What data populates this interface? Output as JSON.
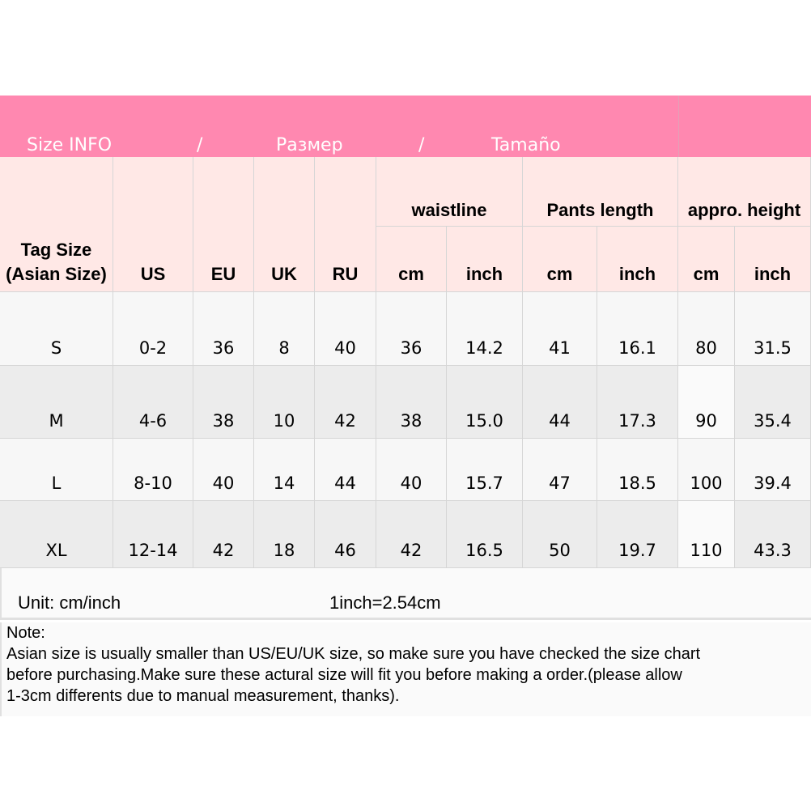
{
  "banner": {
    "title_en": "Size INFO",
    "sep1": "/",
    "title_ru": "Размер",
    "sep2": "/",
    "title_es": "Tamaño",
    "color": "#ff88b0"
  },
  "header": {
    "tag_size": "Tag Size\n(Asian Size)",
    "us": "US",
    "eu": "EU",
    "uk": "UK",
    "ru": "RU",
    "waistline": "waistline",
    "pants_length": "Pants length",
    "height": "appro. height",
    "cm": "cm",
    "inch": "inch"
  },
  "rows": [
    [
      "S",
      "0-2",
      "36",
      "8",
      "40",
      "36",
      "14.2",
      "41",
      "16.1",
      "80",
      "31.5"
    ],
    [
      "M",
      "4-6",
      "38",
      "10",
      "42",
      "38",
      "15.0",
      "44",
      "17.3",
      "90",
      "35.4"
    ],
    [
      "L",
      "8-10",
      "40",
      "14",
      "44",
      "40",
      "15.7",
      "47",
      "18.5",
      "100",
      "39.4"
    ],
    [
      "XL",
      "12-14",
      "42",
      "18",
      "46",
      "42",
      "16.5",
      "50",
      "19.7",
      "110",
      "43.3"
    ]
  ],
  "unit": {
    "label": "Unit: cm/inch",
    "conversion": "1inch=2.54cm"
  },
  "note": {
    "title": "Note:",
    "lines": [
      "Asian size is usually smaller than US/EU/UK size, so make sure you have checked the size chart",
      "before purchasing.Make sure these actural size will fit you before making a order.(please allow",
      "1-3cm differents due to manual measurement, thanks)."
    ]
  }
}
